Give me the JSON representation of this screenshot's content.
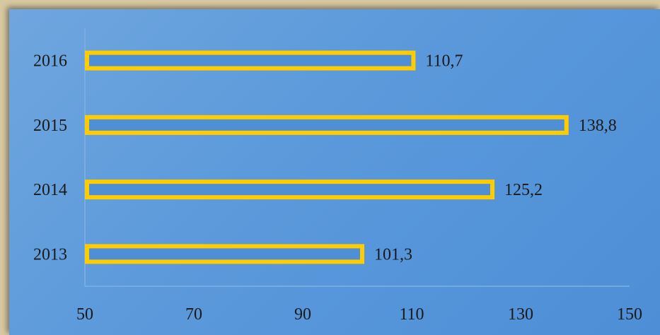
{
  "chart_data": {
    "type": "bar",
    "orientation": "horizontal",
    "categories": [
      "2016",
      "2015",
      "2014",
      "2013"
    ],
    "values": [
      110.7,
      138.8,
      125.2,
      101.3
    ],
    "data_labels": [
      "110,7",
      "138,8",
      "125,2",
      "101,3"
    ],
    "xlim": [
      50,
      150
    ],
    "xticks": [
      "50",
      "70",
      "90",
      "110",
      "130",
      "150"
    ],
    "title": "",
    "xlabel": "",
    "ylabel": "",
    "grid": false,
    "legend": "none",
    "colors": {
      "bar_fill": "#4f8fd6",
      "bar_border": "#ffcc00",
      "background": "#5b99db",
      "text": "#1a1a1a",
      "axis": "#7fb0e4"
    }
  }
}
